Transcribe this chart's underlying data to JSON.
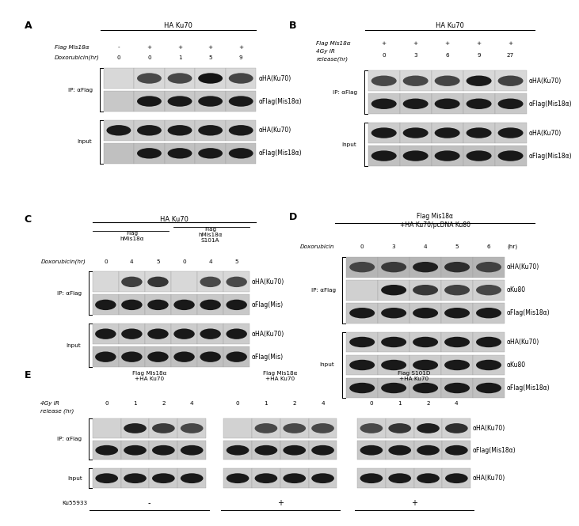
{
  "fig_width": 6.89,
  "fig_height": 6.45,
  "bg_color": "#ffffff",
  "fs_panel": 9,
  "fs_label": 6.0,
  "fs_small": 5.2,
  "fs_blot": 5.5,
  "panel_A": {
    "label": "A",
    "title": "HA Ku70",
    "row1_label": "Flag Mis18α",
    "row1_vals": [
      "-",
      "+",
      "+",
      "+",
      "+"
    ],
    "row2_label": "Doxorubicin(hr)",
    "row2_vals": [
      "0",
      "0",
      "1",
      "5",
      "9"
    ],
    "ip_label": "IP: αFlag",
    "input_label": "Input",
    "blot_labels": [
      "αHA(Ku70)",
      "αFlag(Mis18α)",
      "αHA(Ku70)",
      "αFlag(Mis18α)"
    ],
    "intensities": [
      [
        0,
        0.04,
        0.08,
        0.95,
        0.12
      ],
      [
        0,
        0.88,
        0.85,
        0.85,
        0.85
      ],
      [
        0.85,
        0.85,
        0.85,
        0.85,
        0.85
      ],
      [
        0,
        0.85,
        0.85,
        0.85,
        0.85
      ]
    ],
    "bg_colors": [
      "#d8d8d8",
      "#c8c8c8",
      "#cccccc",
      "#c0c0c0"
    ],
    "n_ip_rows": 2,
    "n_input_rows": 2
  },
  "panel_B": {
    "label": "B",
    "title": "HA Ku70",
    "row1_label": "Flag Mis18α",
    "row1_vals": [
      "+",
      "+",
      "+",
      "+",
      "+"
    ],
    "row2_label_a": "4Gy IR",
    "row2_label_b": "release(hr)",
    "row2_vals": [
      "0",
      "3",
      "6",
      "9",
      "27"
    ],
    "ip_label": "IP: αFlag",
    "input_label": "Input",
    "blot_labels": [
      "αHA(Ku70)",
      "αFlag(Mis18α)",
      "αHA(Ku70)",
      "αFlag(Mis18α)"
    ],
    "intensities": [
      [
        0.04,
        0.06,
        0.1,
        0.85,
        0.15
      ],
      [
        0.85,
        0.85,
        0.85,
        0.85,
        0.85
      ],
      [
        0.85,
        0.85,
        0.85,
        0.85,
        0.85
      ],
      [
        0.85,
        0.85,
        0.85,
        0.85,
        0.85
      ]
    ],
    "bg_colors": [
      "#d8d8d8",
      "#c8c8c8",
      "#cccccc",
      "#c0c0c0"
    ],
    "n_ip_rows": 2,
    "n_input_rows": 2
  },
  "panel_C": {
    "label": "C",
    "title": "HA Ku70",
    "sub1_label": "Flag\nhMis18α",
    "sub2_label": "Flag\nhMis18α\nS101A",
    "row_label": "Doxorubicin(hr)",
    "row_vals": [
      "0",
      "4",
      "5",
      "0",
      "4",
      "5"
    ],
    "ip_label": "IP: αFlag",
    "input_label": "Input",
    "blot_labels": [
      "αHA(Ku70)",
      "αFlag(Mis)",
      "αHA(Ku70)",
      "αFlag(Mis)"
    ],
    "intensities": [
      [
        0,
        0.22,
        0.38,
        0,
        0.04,
        0.04
      ],
      [
        0.85,
        0.85,
        0.85,
        0.85,
        0.85,
        0.85
      ],
      [
        0.85,
        0.85,
        0.85,
        0.85,
        0.85,
        0.85
      ],
      [
        0.85,
        0.85,
        0.85,
        0.85,
        0.85,
        0.85
      ]
    ],
    "bg_colors": [
      "#d8d8d8",
      "#c8c8c8",
      "#cccccc",
      "#c0c0c0"
    ],
    "n_ip_rows": 2,
    "n_input_rows": 2
  },
  "panel_D": {
    "label": "D",
    "title": "Flag Mis18α\n+HA Ku70/pcDNA Ku80",
    "row_label": "Doxorubicin",
    "row_vals": [
      "0",
      "3",
      "4",
      "5",
      "6"
    ],
    "row_extra": "(hr)",
    "ip_label": "IP: αFlag",
    "input_label": "Input",
    "blot_labels": [
      "αHA(Ku70)",
      "αKu80",
      "αFlag(Mis18α)",
      "αHA(Ku70)",
      "αKu80",
      "αFlag(Mis18α)"
    ],
    "intensities": [
      [
        0.1,
        0.28,
        0.72,
        0.48,
        0.14
      ],
      [
        0,
        0.88,
        0.32,
        0.18,
        0.08
      ],
      [
        0.85,
        0.85,
        0.85,
        0.85,
        0.85
      ],
      [
        0.85,
        0.85,
        0.85,
        0.85,
        0.85
      ],
      [
        0.85,
        0.85,
        0.85,
        0.85,
        0.85
      ],
      [
        0.85,
        0.85,
        0.85,
        0.85,
        0.85
      ]
    ],
    "bg_colors": [
      "#b5b5b5",
      "#d0d0d0",
      "#c8c8c8",
      "#cccccc",
      "#cccccc",
      "#c0c0c0"
    ],
    "n_ip_rows": 3,
    "n_input_rows": 3
  },
  "panel_E": {
    "label": "E",
    "col_titles": [
      "Flag Mis18α\n+HA Ku70",
      "Flag Mis18α\n+HA Ku70",
      "Flag S101D\n+HA Ku70"
    ],
    "row_label_a": "4Gy IR",
    "row_label_b": "release (hr)",
    "row_vals": [
      "0",
      "1",
      "2",
      "4"
    ],
    "ip_label": "IP: αFlag",
    "input_label": "Input",
    "ku55933_label": "Ku55933",
    "ku55933_vals": [
      "-",
      "+",
      "+"
    ],
    "blot_labels": [
      "αHA(Ku70)",
      "αFlag(Mis18α)",
      "αHA(Ku70)"
    ],
    "intensities_per_col": [
      [
        [
          0,
          0.72,
          0.28,
          0.08
        ],
        [
          0.85,
          0.85,
          0.85,
          0.85
        ],
        [
          0.85,
          0.85,
          0.85,
          0.85
        ]
      ],
      [
        [
          0,
          0.04,
          0.04,
          0.04
        ],
        [
          0.85,
          0.85,
          0.85,
          0.85
        ],
        [
          0.85,
          0.85,
          0.85,
          0.85
        ]
      ],
      [
        [
          0.04,
          0.38,
          0.78,
          0.48
        ],
        [
          0.85,
          0.85,
          0.85,
          0.85
        ],
        [
          0.85,
          0.85,
          0.85,
          0.85
        ]
      ]
    ],
    "bg_colors": [
      "#d2d2d2",
      "#c8c8c8",
      "#cccccc"
    ],
    "n_ip_rows": 2,
    "n_input_rows": 1
  }
}
